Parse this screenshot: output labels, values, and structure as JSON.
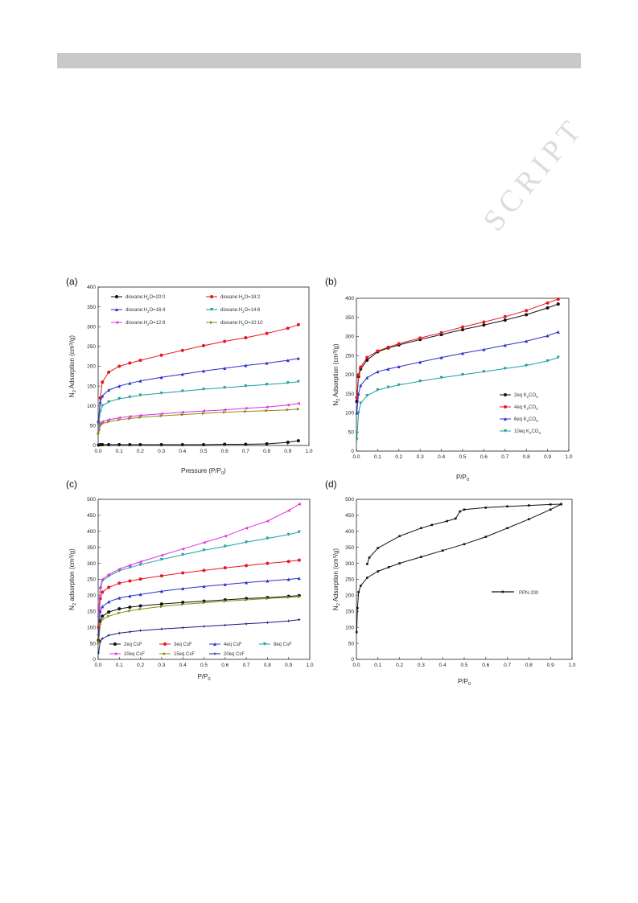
{
  "watermark": "SCRIPT",
  "chart_data": [
    {
      "panel": "(a)",
      "type": "line",
      "xlabel": "Pressure (P/P0)",
      "ylabel": "N2 Adsorption (cm3/g)",
      "xlim": [
        0,
        1.0
      ],
      "ylim": [
        0,
        400
      ],
      "xticks": [
        0.0,
        0.1,
        0.2,
        0.3,
        0.4,
        0.5,
        0.6,
        0.7,
        0.8,
        0.9,
        1.0
      ],
      "yticks": [
        0,
        50,
        100,
        150,
        200,
        250,
        300,
        350,
        400
      ],
      "legend": "top-left",
      "x": [
        0.002,
        0.01,
        0.02,
        0.05,
        0.1,
        0.15,
        0.2,
        0.3,
        0.4,
        0.5,
        0.6,
        0.7,
        0.8,
        0.9,
        0.95
      ],
      "series": [
        {
          "name": "dioxane:H2O=20:0",
          "color": "#111111",
          "marker": "circle",
          "values": [
            1,
            2,
            2,
            2,
            2,
            2,
            2,
            2,
            2,
            2,
            3,
            3,
            4,
            8,
            12
          ]
        },
        {
          "name": "dioxane:H2O=18:2",
          "color": "#e8161e",
          "marker": "circle",
          "values": [
            60,
            120,
            160,
            185,
            200,
            208,
            215,
            228,
            240,
            252,
            263,
            272,
            283,
            296,
            305
          ]
        },
        {
          "name": "dioxane:H2O=16:4",
          "color": "#2c2ccf",
          "marker": "triangle-up",
          "values": [
            60,
            110,
            125,
            140,
            150,
            157,
            163,
            172,
            180,
            188,
            195,
            202,
            208,
            215,
            220
          ]
        },
        {
          "name": "dioxane:H2O=14:6",
          "color": "#1e9d9d",
          "marker": "triangle-down",
          "values": [
            50,
            85,
            100,
            110,
            118,
            122,
            127,
            132,
            137,
            142,
            146,
            150,
            154,
            158,
            161
          ]
        },
        {
          "name": "dioxane:H2O=12:8",
          "color": "#e030e0",
          "marker": "triangle-left",
          "values": [
            40,
            55,
            60,
            65,
            70,
            73,
            76,
            80,
            84,
            87,
            90,
            94,
            97,
            102,
            106
          ]
        },
        {
          "name": "dioxane:H2O=10:10",
          "color": "#8a8a16",
          "marker": "triangle-right",
          "values": [
            30,
            50,
            55,
            60,
            65,
            68,
            71,
            75,
            78,
            81,
            84,
            86,
            88,
            90,
            92
          ]
        }
      ]
    },
    {
      "panel": "(b)",
      "type": "line",
      "xlabel": "P/P0",
      "ylabel": "N2 Adsorption (cm3/g)",
      "xlim": [
        0,
        1.0
      ],
      "ylim": [
        0,
        400
      ],
      "xticks": [
        0.0,
        0.1,
        0.2,
        0.3,
        0.4,
        0.5,
        0.6,
        0.7,
        0.8,
        0.9,
        1.0
      ],
      "yticks": [
        0,
        50,
        100,
        150,
        200,
        250,
        300,
        350,
        400
      ],
      "legend": "bottom-right",
      "x": [
        0.002,
        0.01,
        0.02,
        0.05,
        0.1,
        0.15,
        0.2,
        0.3,
        0.4,
        0.5,
        0.6,
        0.7,
        0.8,
        0.9,
        0.95
      ],
      "series": [
        {
          "name": "2eq K2CO3",
          "color": "#111111",
          "marker": "circle",
          "values": [
            130,
            195,
            215,
            238,
            260,
            270,
            278,
            292,
            305,
            318,
            330,
            343,
            357,
            375,
            385
          ]
        },
        {
          "name": "4eq K2CO3",
          "color": "#e8161e",
          "marker": "circle",
          "values": [
            140,
            200,
            220,
            245,
            262,
            272,
            281,
            296,
            310,
            325,
            338,
            352,
            368,
            388,
            398
          ]
        },
        {
          "name": "6eq K2CO3",
          "color": "#2c2ccf",
          "marker": "triangle-up",
          "values": [
            100,
            150,
            172,
            192,
            208,
            215,
            221,
            233,
            245,
            256,
            266,
            277,
            288,
            302,
            312
          ]
        },
        {
          "name": "10eq K2CO3",
          "color": "#1e9d9d",
          "marker": "triangle-down",
          "values": [
            30,
            100,
            125,
            145,
            160,
            167,
            173,
            183,
            192,
            200,
            208,
            216,
            224,
            236,
            245
          ]
        }
      ]
    },
    {
      "panel": "(c)",
      "type": "line",
      "xlabel": "P/P0",
      "ylabel": "N2 adsorption (cm3/g)",
      "xlim": [
        0,
        1.0
      ],
      "ylim": [
        0,
        500
      ],
      "xticks": [
        0.0,
        0.1,
        0.2,
        0.3,
        0.4,
        0.5,
        0.6,
        0.7,
        0.8,
        0.9,
        1.0
      ],
      "yticks": [
        0,
        50,
        100,
        150,
        200,
        250,
        300,
        350,
        400,
        450,
        500
      ],
      "legend": "bottom",
      "x": [
        0.002,
        0.01,
        0.02,
        0.05,
        0.1,
        0.15,
        0.2,
        0.3,
        0.4,
        0.5,
        0.6,
        0.7,
        0.8,
        0.9,
        0.95
      ],
      "series": [
        {
          "name": "2eq CsF",
          "color": "#111111",
          "marker": "circle",
          "values": [
            60,
            120,
            135,
            148,
            158,
            163,
            167,
            173,
            178,
            182,
            186,
            190,
            193,
            197,
            199
          ]
        },
        {
          "name": "3eq CsF",
          "color": "#e8161e",
          "marker": "circle",
          "values": [
            100,
            190,
            210,
            225,
            238,
            245,
            251,
            261,
            270,
            278,
            286,
            293,
            300,
            306,
            310
          ]
        },
        {
          "name": "4eq CsF",
          "color": "#2c2ccf",
          "marker": "triangle-up",
          "values": [
            80,
            150,
            165,
            180,
            192,
            198,
            203,
            213,
            221,
            228,
            234,
            240,
            245,
            250,
            253
          ]
        },
        {
          "name": "8eq CsF",
          "color": "#1e9d9d",
          "marker": "triangle-down",
          "values": [
            130,
            220,
            245,
            260,
            277,
            287,
            296,
            312,
            327,
            341,
            353,
            366,
            378,
            390,
            398
          ]
        },
        {
          "name": "10eq CsF",
          "color": "#e030e0",
          "marker": "triangle-left",
          "values": [
            140,
            225,
            250,
            265,
            282,
            294,
            305,
            325,
            345,
            365,
            385,
            410,
            432,
            465,
            485
          ]
        },
        {
          "name": "15eq CsF",
          "color": "#8a8a16",
          "marker": "triangle-right",
          "values": [
            50,
            110,
            125,
            135,
            145,
            152,
            157,
            165,
            172,
            177,
            182,
            186,
            190,
            194,
            196
          ]
        },
        {
          "name": "20eq CsF",
          "color": "#1a1a80",
          "marker": "star",
          "values": [
            20,
            55,
            65,
            75,
            82,
            86,
            90,
            95,
            99,
            103,
            107,
            111,
            115,
            120,
            124
          ]
        }
      ]
    },
    {
      "panel": "(d)",
      "type": "line",
      "xlabel": "P/P0",
      "ylabel": "N2 Adsorption (cm3/g)",
      "xlim": [
        0,
        1.0
      ],
      "ylim": [
        0,
        500
      ],
      "xticks": [
        0.0,
        0.1,
        0.2,
        0.3,
        0.4,
        0.5,
        0.6,
        0.7,
        0.8,
        0.9,
        1.0
      ],
      "yticks": [
        0,
        50,
        100,
        150,
        200,
        250,
        300,
        350,
        400,
        450,
        500
      ],
      "legend": "middle-right",
      "series": [
        {
          "name": "PPN-200",
          "color": "#111111",
          "marker": "square",
          "segments": [
            {
              "x": [
                0.001,
                0.005,
                0.01,
                0.02,
                0.05,
                0.1,
                0.15,
                0.2,
                0.3,
                0.4,
                0.5,
                0.6,
                0.7,
                0.8,
                0.9,
                0.95
              ],
              "y": [
                85,
                160,
                210,
                230,
                255,
                275,
                288,
                300,
                320,
                340,
                360,
                383,
                410,
                438,
                468,
                485
              ]
            },
            {
              "x": [
                0.95,
                0.9,
                0.8,
                0.7,
                0.6,
                0.5,
                0.48,
                0.46,
                0.42,
                0.35,
                0.3,
                0.2,
                0.1,
                0.06,
                0.05
              ],
              "y": [
                485,
                484,
                481,
                478,
                474,
                468,
                462,
                440,
                432,
                420,
                410,
                385,
                348,
                318,
                298
              ]
            }
          ]
        }
      ]
    }
  ]
}
